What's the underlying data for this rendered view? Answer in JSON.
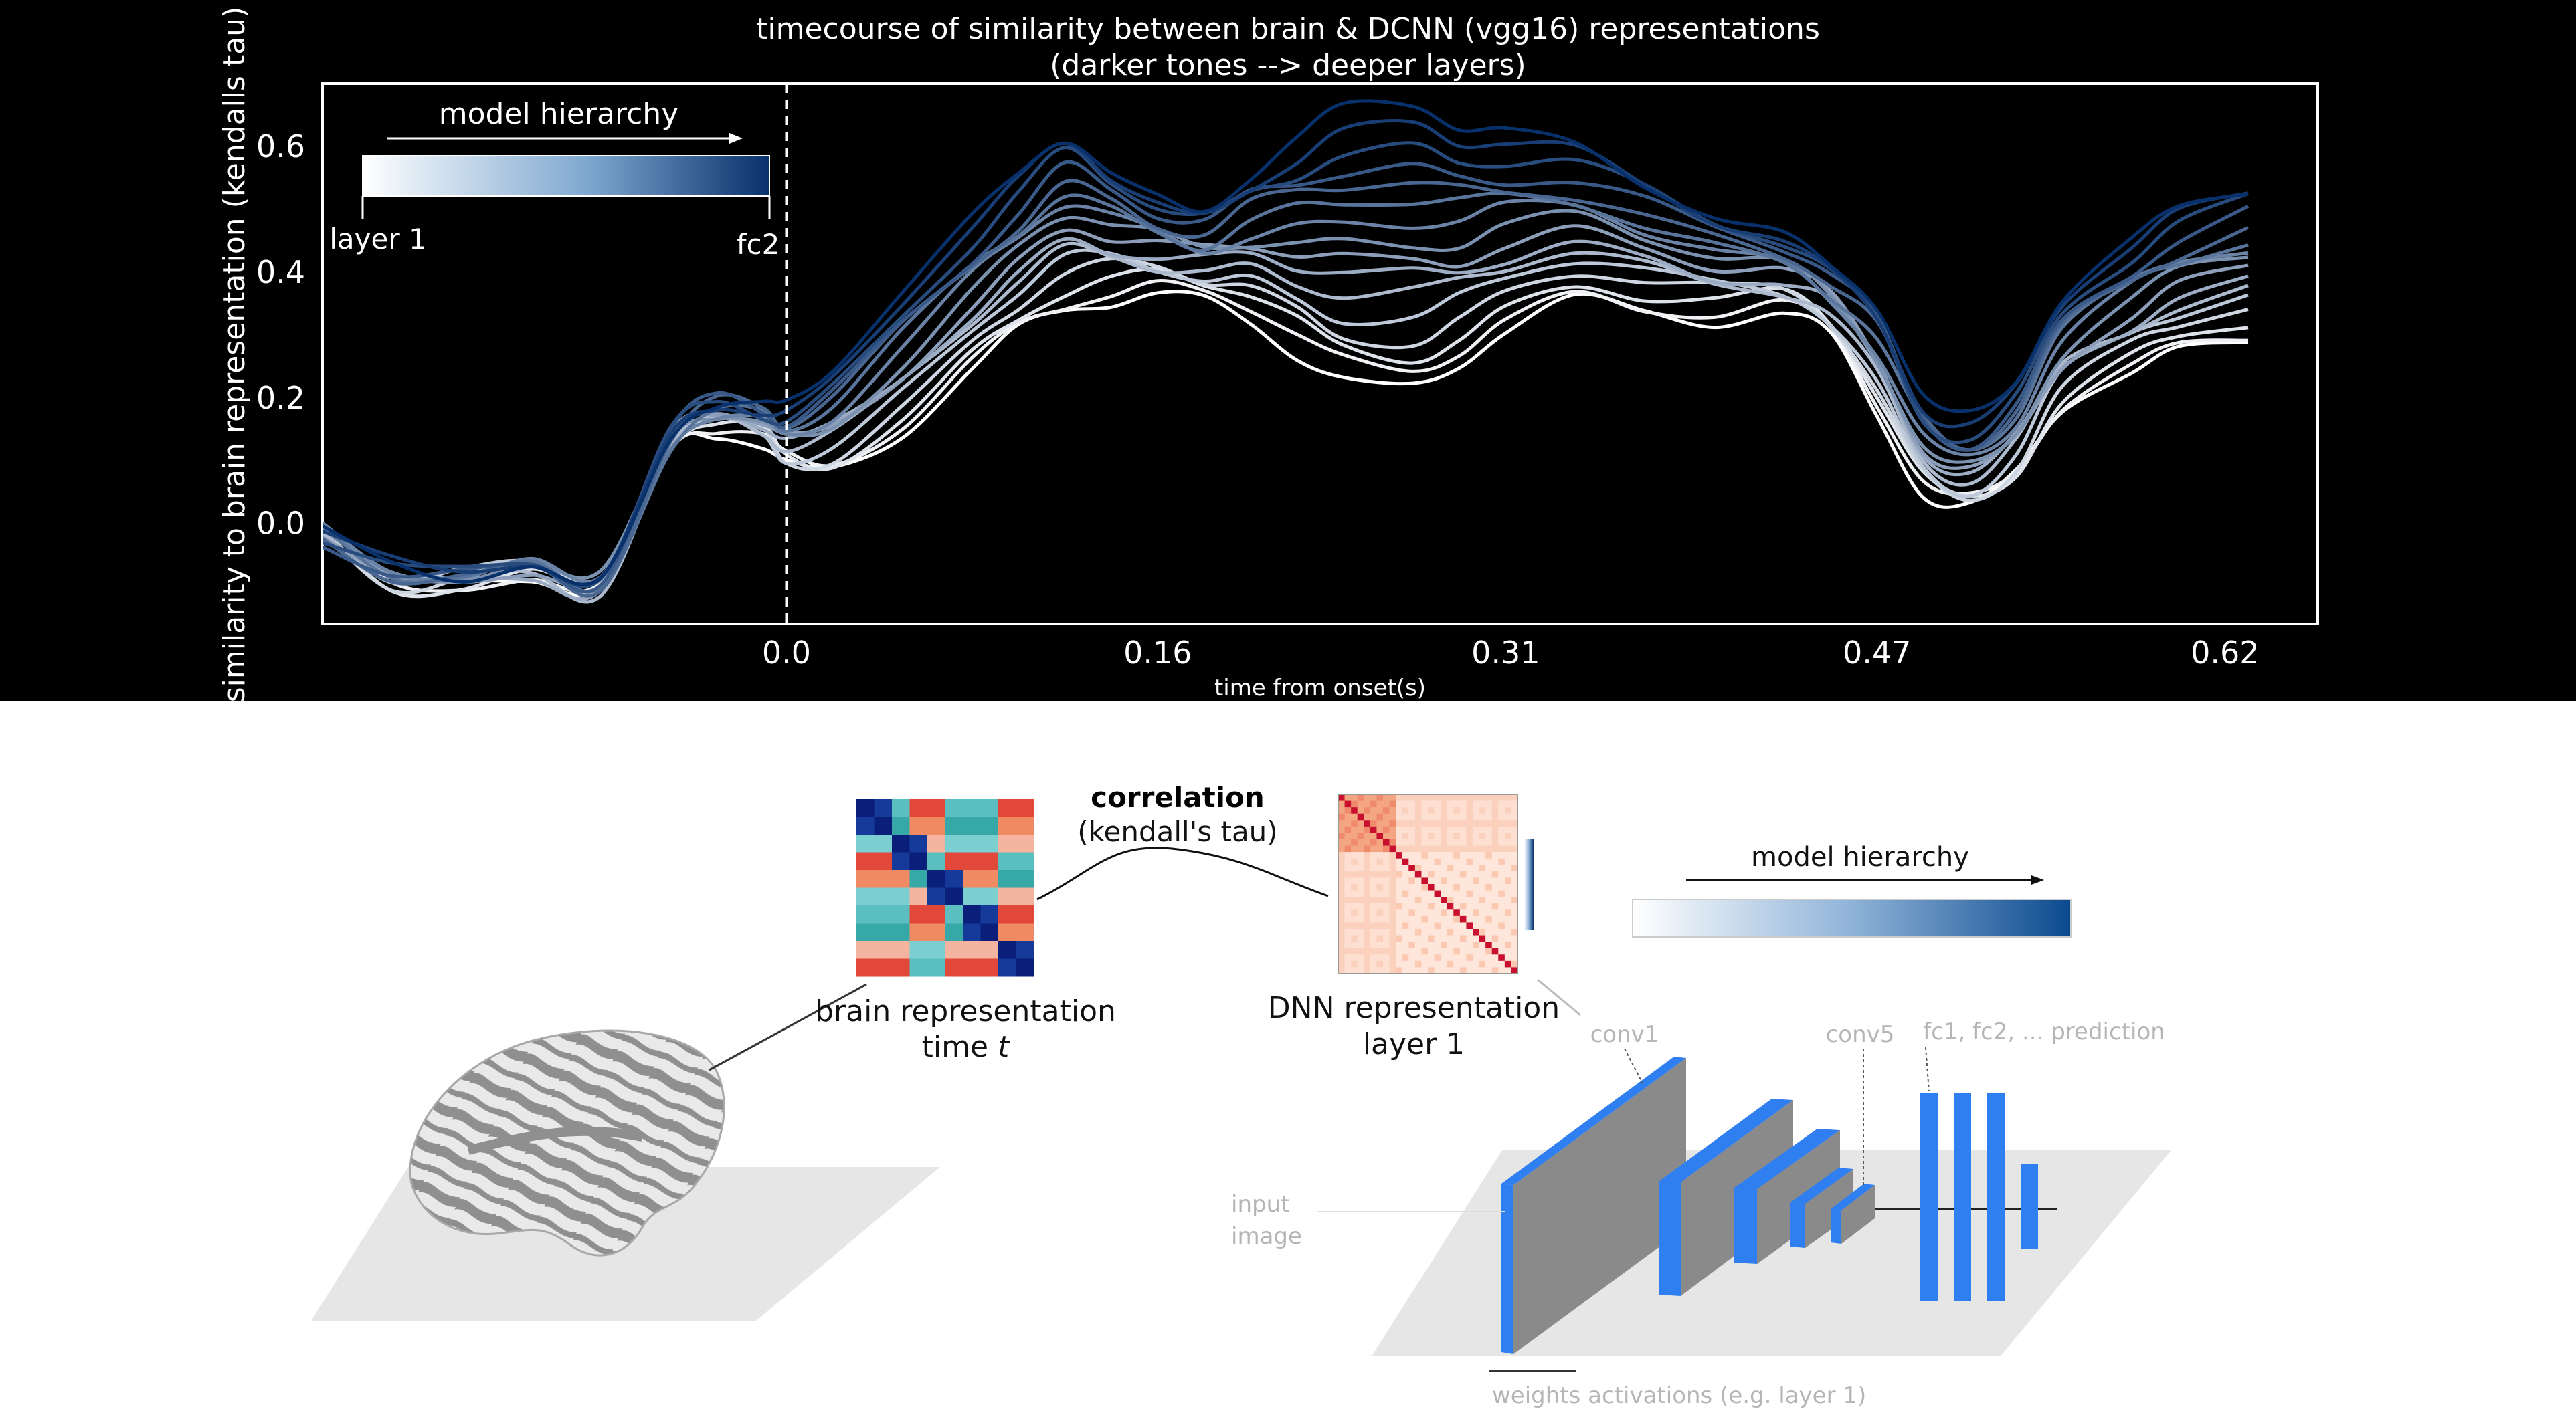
{
  "top_chart": {
    "title_line1": "timecourse of similarity between brain & DCNN (vgg16) representations",
    "title_line2": "(darker tones --> deeper layers)",
    "xlabel": "time from onset(s)",
    "ylabel": "similarity to brain representation (kendalls tau)",
    "legend": {
      "title": "model hierarchy",
      "start_label": "layer 1",
      "end_label": "fc2"
    },
    "colors": {
      "background": "#000000",
      "light": "#ffffff",
      "dark": "#08306b",
      "accent": "#2f6fb3"
    }
  },
  "chart_data": {
    "type": "line",
    "xlabel": "time from onset(s)",
    "ylabel": "similarity to brain representation (kendalls tau)",
    "xlim": [
      -0.2,
      0.66
    ],
    "ylim": [
      -0.16,
      0.7
    ],
    "x_ticks": [
      0.0,
      0.16,
      0.31,
      0.47,
      0.62
    ],
    "x_tick_labels": [
      "0.0",
      "0.16",
      "0.31",
      "0.47",
      "0.62"
    ],
    "y_ticks": [
      0.0,
      0.2,
      0.4,
      0.6
    ],
    "y_tick_labels": [
      "0.0",
      "0.2",
      "0.4",
      "0.6"
    ],
    "onset_line_x": 0.0,
    "grid": false,
    "legend_placement": "top-left",
    "series_color_scale": [
      "#ffffff",
      "#08306b"
    ],
    "series_count": 16,
    "template_x": [
      -0.2,
      -0.17,
      -0.14,
      -0.11,
      -0.08,
      -0.05,
      -0.03,
      -0.01,
      0.0,
      0.02,
      0.05,
      0.08,
      0.1,
      0.12,
      0.14,
      0.16,
      0.18,
      0.2,
      0.22,
      0.24,
      0.27,
      0.29,
      0.31,
      0.34,
      0.37,
      0.4,
      0.43,
      0.45,
      0.47,
      0.49,
      0.51,
      0.53,
      0.55,
      0.58,
      0.6,
      0.63
    ],
    "series_envelope": {
      "light_end": [
        -0.01,
        -0.1,
        -0.09,
        -0.08,
        -0.1,
        0.12,
        0.15,
        0.13,
        0.09,
        0.08,
        0.14,
        0.24,
        0.3,
        0.34,
        0.36,
        0.37,
        0.36,
        0.33,
        0.27,
        0.22,
        0.21,
        0.25,
        0.3,
        0.35,
        0.34,
        0.33,
        0.34,
        0.3,
        0.18,
        0.05,
        0.02,
        0.07,
        0.18,
        0.24,
        0.27,
        0.29
      ],
      "dark_end": [
        -0.02,
        -0.07,
        -0.08,
        -0.06,
        -0.09,
        0.14,
        0.2,
        0.19,
        0.18,
        0.24,
        0.37,
        0.48,
        0.55,
        0.62,
        0.57,
        0.52,
        0.5,
        0.56,
        0.61,
        0.65,
        0.66,
        0.63,
        0.62,
        0.6,
        0.55,
        0.5,
        0.46,
        0.41,
        0.35,
        0.2,
        0.16,
        0.22,
        0.36,
        0.45,
        0.5,
        0.54
      ]
    }
  },
  "diagram": {
    "correlation_title": "correlation",
    "correlation_sub": "(kendall's tau)",
    "brain_rep_line1": "brain representation",
    "brain_rep_line2": "time ",
    "brain_rep_t": "t",
    "dnn_rep_line1": "DNN representation",
    "dnn_rep_line2": "layer 1",
    "model_hierarchy": "model hierarchy",
    "conv1": "conv1",
    "conv5": "conv5",
    "fc_label": "fc1, fc2, ... prediction",
    "input_image_line1": "input",
    "input_image_line2": "image",
    "weights_label": "weights activations (e.g. layer 1)",
    "colors": {
      "network_blue": "#2f7ff0",
      "slab_gray": "#8a8a8a",
      "plane_gray": "#e6e6e6",
      "text_gray": "#b5b5b5"
    }
  }
}
